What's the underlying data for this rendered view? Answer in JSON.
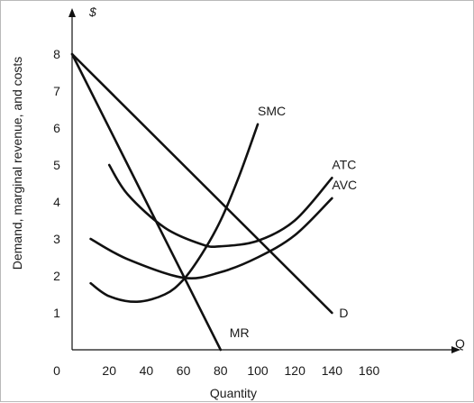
{
  "chart_data": {
    "type": "line",
    "title": "",
    "xlabel": "Quantity",
    "ylabel": "Demand, marginal revenue, and costs",
    "x_axis_end_label": "Q",
    "y_axis_end_label": "$",
    "xlim": [
      0,
      160
    ],
    "ylim": [
      0,
      8
    ],
    "x_ticks": [
      "0",
      "20",
      "40",
      "60",
      "80",
      "100",
      "120",
      "140",
      "160"
    ],
    "y_ticks": [
      "1",
      "2",
      "3",
      "4",
      "5",
      "6",
      "7",
      "8"
    ],
    "grid": false,
    "series": [
      {
        "name": "D",
        "x": [
          0,
          140
        ],
        "y": [
          8,
          1
        ]
      },
      {
        "name": "MR",
        "x": [
          0,
          80
        ],
        "y": [
          8,
          0
        ]
      },
      {
        "name": "SMC",
        "x": [
          10,
          20,
          35,
          50,
          60,
          70,
          80,
          90,
          100
        ],
        "y": [
          1.8,
          1.45,
          1.3,
          1.5,
          1.9,
          2.6,
          3.5,
          4.7,
          6.1
        ]
      },
      {
        "name": "ATC",
        "x": [
          20,
          30,
          50,
          70,
          80,
          100,
          120,
          140
        ],
        "y": [
          5.0,
          4.2,
          3.3,
          2.85,
          2.8,
          2.95,
          3.5,
          4.65
        ]
      },
      {
        "name": "AVC",
        "x": [
          10,
          30,
          60,
          80,
          100,
          120,
          140
        ],
        "y": [
          3.0,
          2.45,
          1.95,
          2.1,
          2.5,
          3.1,
          4.1
        ]
      }
    ]
  }
}
